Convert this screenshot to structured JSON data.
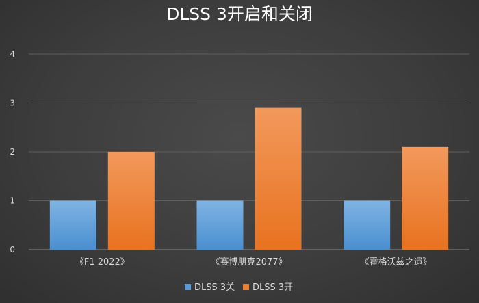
{
  "chart_data": {
    "type": "bar",
    "title": "DLSS 3开启和关闭",
    "categories": [
      "《F1 2022》",
      "《赛博朋克2077》",
      "《霍格沃兹之遗》"
    ],
    "series": [
      {
        "name": "DLSS 3关",
        "values": [
          1,
          1,
          1
        ],
        "color": "#5b9bd5"
      },
      {
        "name": "DLSS 3开",
        "values": [
          2,
          2.9,
          2.1
        ],
        "color": "#ed7d31"
      }
    ],
    "ylim": [
      0,
      4
    ],
    "yticks": [
      "0",
      "1",
      "2",
      "3",
      "4"
    ],
    "xlabel": "",
    "ylabel": "",
    "grid": true,
    "legend_position": "bottom"
  }
}
